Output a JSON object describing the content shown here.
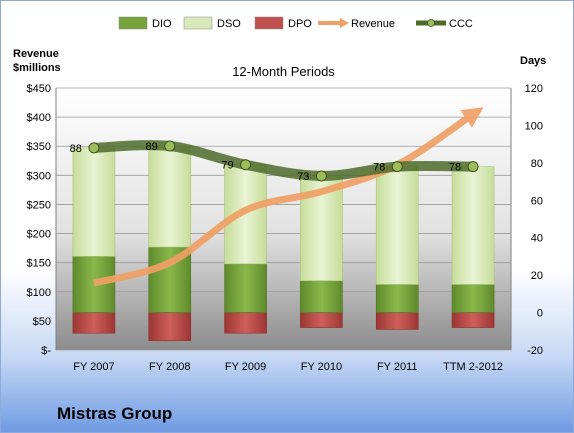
{
  "chart_data": {
    "type": "bar",
    "title": "12-Month Periods",
    "company": "Mistras Group",
    "categories": [
      "FY 2007",
      "FY 2008",
      "FY 2009",
      "FY 2010",
      "FY 2011",
      "TTM 2-2012"
    ],
    "left_axis": {
      "label_line1": "Revenue",
      "label_line2": "$millions",
      "range": [
        0,
        450
      ],
      "ticks": [
        "$-",
        "$50",
        "$100",
        "$150",
        "$200",
        "$250",
        "$300",
        "$350",
        "$400",
        "$450"
      ]
    },
    "right_axis": {
      "label": "Days",
      "range": [
        -20,
        120
      ],
      "ticks": [
        "-20",
        "0",
        "20",
        "40",
        "60",
        "80",
        "100",
        "120"
      ]
    },
    "legend": {
      "position": "top",
      "items": [
        {
          "name": "DIO",
          "color": "#77a33a"
        },
        {
          "name": "DSO",
          "color": "#d7e9b8"
        },
        {
          "name": "DPO",
          "color": "#c0504d"
        },
        {
          "name": "Revenue",
          "color": "#f0a065"
        },
        {
          "name": "CCC",
          "color": "#4e6b2a"
        }
      ]
    },
    "series": [
      {
        "name": "DIO",
        "axis": "right",
        "values": [
          30,
          35,
          26,
          17,
          15,
          15
        ]
      },
      {
        "name": "DSO",
        "axis": "right",
        "values": [
          58,
          54,
          53,
          56,
          63,
          63
        ]
      },
      {
        "name": "DPO",
        "axis": "right",
        "values": [
          -11,
          -15,
          -11,
          -8,
          -9,
          -8
        ]
      },
      {
        "name": "Revenue",
        "axis": "left",
        "values": [
          115,
          150,
          240,
          272,
          318,
          405
        ]
      },
      {
        "name": "CCC",
        "axis": "right",
        "values": [
          88,
          89,
          79,
          73,
          78,
          78
        ],
        "labels": [
          "88",
          "89",
          "79",
          "73",
          "78",
          "78"
        ]
      }
    ],
    "grid": true
  }
}
